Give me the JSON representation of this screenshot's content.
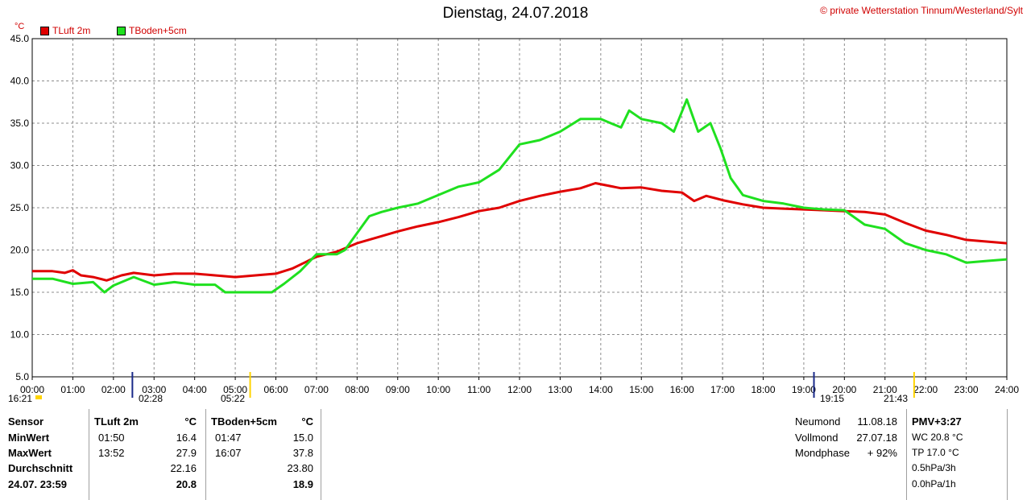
{
  "title": "Dienstag, 24.07.2018",
  "copyright": "© private Wetterstation Tinnum/Westerland/Sylt",
  "unit": "°C",
  "events": {
    "moon_set": "02:28",
    "sunrise": "05:22",
    "moon_rise": "19:15",
    "sunset": "21:43",
    "start_time": "16:21"
  },
  "stats": {
    "headers": {
      "sensor": "Sensor",
      "t1": "TLuft 2m",
      "t1_unit": "°C",
      "t2": "TBoden+5cm",
      "t2_unit": "°C"
    },
    "rows": [
      {
        "label": "MinWert",
        "t1_time": "01:50",
        "t1_val": "16.4",
        "t2_time": "01:47",
        "t2_val": "15.0"
      },
      {
        "label": "MaxWert",
        "t1_time": "13:52",
        "t1_val": "27.9",
        "t2_time": "16:07",
        "t2_val": "37.8"
      },
      {
        "label": "Durchschnitt",
        "t1_time": "",
        "t1_val": "22.16",
        "t2_time": "",
        "t2_val": "23.80"
      },
      {
        "label": "24.07. 23:59",
        "t1_time": "",
        "t1_val": "20.8",
        "t2_time": "",
        "t2_val": "18.9"
      }
    ],
    "moon": [
      {
        "label": "Neumond",
        "value": "11.08.18"
      },
      {
        "label": "Vollmond",
        "value": "27.07.18"
      },
      {
        "label": "Mondphase",
        "value": "+ 92%"
      }
    ],
    "pmv": {
      "title": "PMV+3:27",
      "lines": [
        "WC 20.8 °C",
        "TP 17.0 °C",
        "0.5hPa/3h",
        "0.0hPa/1h"
      ]
    }
  },
  "chart_data": {
    "type": "line",
    "x_ticks": [
      "00:00",
      "01:00",
      "02:00",
      "03:00",
      "04:00",
      "05:00",
      "06:00",
      "07:00",
      "08:00",
      "09:00",
      "10:00",
      "11:00",
      "12:00",
      "13:00",
      "14:00",
      "15:00",
      "16:00",
      "17:00",
      "18:00",
      "19:00",
      "20:00",
      "21:00",
      "22:00",
      "23:00",
      "24:00"
    ],
    "y_ticks": [
      "5.0",
      "10.0",
      "15.0",
      "20.0",
      "25.0",
      "30.0",
      "35.0",
      "40.0",
      "45.0"
    ],
    "ylim": [
      5,
      45
    ],
    "xlim_hours": [
      0,
      24
    ],
    "grid": true,
    "legend_position": "top-left",
    "series": [
      {
        "name": "TLuft 2m",
        "color": "#e00000",
        "points": [
          [
            0,
            17.5
          ],
          [
            0.5,
            17.5
          ],
          [
            0.8,
            17.3
          ],
          [
            1.0,
            17.6
          ],
          [
            1.2,
            17.0
          ],
          [
            1.5,
            16.8
          ],
          [
            1.83,
            16.4
          ],
          [
            2.2,
            17.0
          ],
          [
            2.5,
            17.3
          ],
          [
            3.0,
            17.0
          ],
          [
            3.5,
            17.2
          ],
          [
            4.0,
            17.2
          ],
          [
            4.5,
            17.0
          ],
          [
            5.0,
            16.8
          ],
          [
            5.5,
            17.0
          ],
          [
            6.0,
            17.2
          ],
          [
            6.4,
            17.8
          ],
          [
            6.7,
            18.5
          ],
          [
            7.0,
            19.2
          ],
          [
            7.5,
            19.8
          ],
          [
            8.0,
            20.8
          ],
          [
            8.5,
            21.5
          ],
          [
            9.0,
            22.2
          ],
          [
            9.5,
            22.8
          ],
          [
            10.0,
            23.3
          ],
          [
            10.5,
            23.9
          ],
          [
            11.0,
            24.6
          ],
          [
            11.5,
            25.0
          ],
          [
            12.0,
            25.8
          ],
          [
            12.5,
            26.4
          ],
          [
            13.0,
            26.9
          ],
          [
            13.5,
            27.3
          ],
          [
            13.87,
            27.9
          ],
          [
            14.5,
            27.3
          ],
          [
            15.0,
            27.4
          ],
          [
            15.5,
            27.0
          ],
          [
            16.0,
            26.8
          ],
          [
            16.3,
            25.8
          ],
          [
            16.6,
            26.4
          ],
          [
            17.0,
            25.9
          ],
          [
            17.5,
            25.4
          ],
          [
            18.0,
            25.0
          ],
          [
            18.5,
            24.9
          ],
          [
            19.0,
            24.8
          ],
          [
            19.5,
            24.7
          ],
          [
            20.0,
            24.6
          ],
          [
            20.5,
            24.5
          ],
          [
            21.0,
            24.2
          ],
          [
            21.5,
            23.2
          ],
          [
            22.0,
            22.3
          ],
          [
            22.5,
            21.8
          ],
          [
            23.0,
            21.2
          ],
          [
            23.5,
            21.0
          ],
          [
            24.0,
            20.8
          ]
        ]
      },
      {
        "name": "TBoden+5cm",
        "color": "#1fe01f",
        "points": [
          [
            0,
            16.6
          ],
          [
            0.5,
            16.6
          ],
          [
            1.0,
            16.0
          ],
          [
            1.5,
            16.2
          ],
          [
            1.78,
            15.0
          ],
          [
            2.0,
            15.8
          ],
          [
            2.5,
            16.8
          ],
          [
            3.0,
            15.9
          ],
          [
            3.5,
            16.2
          ],
          [
            4.0,
            15.9
          ],
          [
            4.5,
            15.9
          ],
          [
            4.75,
            15.0
          ],
          [
            5.0,
            15.0
          ],
          [
            5.5,
            15.0
          ],
          [
            5.9,
            15.0
          ],
          [
            6.2,
            16.0
          ],
          [
            6.6,
            17.5
          ],
          [
            7.0,
            19.5
          ],
          [
            7.5,
            19.5
          ],
          [
            7.7,
            20.0
          ],
          [
            8.0,
            22.0
          ],
          [
            8.3,
            24.0
          ],
          [
            8.6,
            24.5
          ],
          [
            9.0,
            25.0
          ],
          [
            9.5,
            25.5
          ],
          [
            10.0,
            26.5
          ],
          [
            10.5,
            27.5
          ],
          [
            11.0,
            28.0
          ],
          [
            11.5,
            29.5
          ],
          [
            12.0,
            32.5
          ],
          [
            12.5,
            33.0
          ],
          [
            13.0,
            34.0
          ],
          [
            13.5,
            35.5
          ],
          [
            14.0,
            35.5
          ],
          [
            14.5,
            34.5
          ],
          [
            14.7,
            36.5
          ],
          [
            15.0,
            35.5
          ],
          [
            15.5,
            35.0
          ],
          [
            15.8,
            34.0
          ],
          [
            16.12,
            37.8
          ],
          [
            16.4,
            34.0
          ],
          [
            16.7,
            35.0
          ],
          [
            16.95,
            32.0
          ],
          [
            17.2,
            28.5
          ],
          [
            17.5,
            26.5
          ],
          [
            18.0,
            25.8
          ],
          [
            18.5,
            25.5
          ],
          [
            19.0,
            25.0
          ],
          [
            19.5,
            24.8
          ],
          [
            20.0,
            24.7
          ],
          [
            20.5,
            23.0
          ],
          [
            21.0,
            22.5
          ],
          [
            21.5,
            20.8
          ],
          [
            22.0,
            20.0
          ],
          [
            22.5,
            19.5
          ],
          [
            23.0,
            18.5
          ],
          [
            23.5,
            18.7
          ],
          [
            24.0,
            18.9
          ]
        ]
      }
    ]
  }
}
